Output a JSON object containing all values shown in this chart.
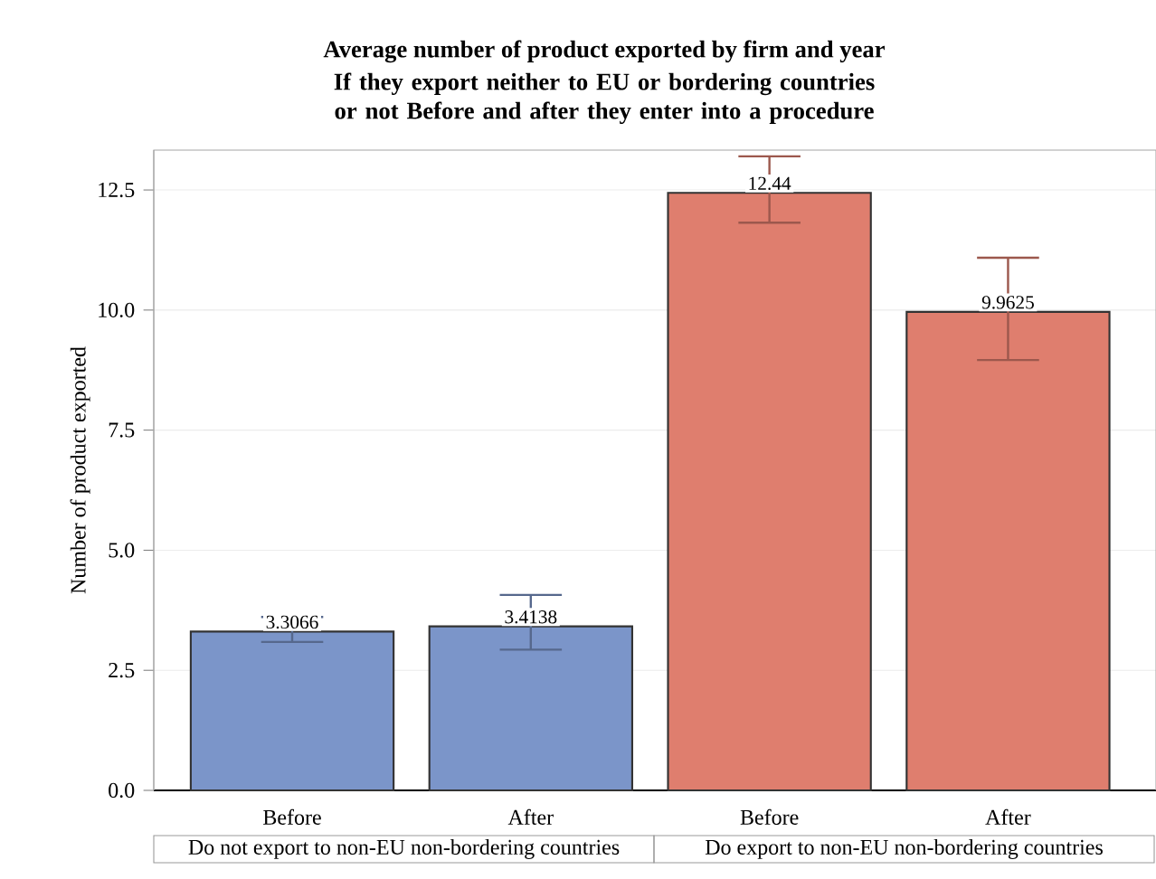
{
  "chart_data": {
    "type": "bar",
    "title": "Average number of product exported by firm and year",
    "subtitle": "If they export neither to EU or bordering countries or not Before and after they enter into a procedure",
    "ylabel": "Number of product exported",
    "categories": [
      "Before",
      "After",
      "Before",
      "After"
    ],
    "values": [
      3.3066,
      3.4138,
      12.44,
      9.9625
    ],
    "colors": [
      "#7b95c9",
      "#7b95c9",
      "#df7e6e",
      "#df7e6e"
    ],
    "errors": [
      [
        3.09,
        3.61
      ],
      [
        2.93,
        4.07
      ],
      [
        11.82,
        13.2
      ],
      [
        8.96,
        11.09
      ]
    ],
    "data_labels": true,
    "ylim": [
      0,
      13.33
    ],
    "yticks": [
      {
        "value": 0,
        "label": "0.0"
      },
      {
        "value": 2.5,
        "label": "2.5"
      },
      {
        "value": 5,
        "label": "5.0"
      },
      {
        "value": 7.5,
        "label": "7.5"
      },
      {
        "value": 10,
        "label": "10.0"
      },
      {
        "value": 12.5,
        "label": "12.5"
      }
    ],
    "grid": "y",
    "annotations": [
      "Do not export to non-EU non-bordering countries",
      "Do export to non-EU non-bordering countries"
    ]
  }
}
